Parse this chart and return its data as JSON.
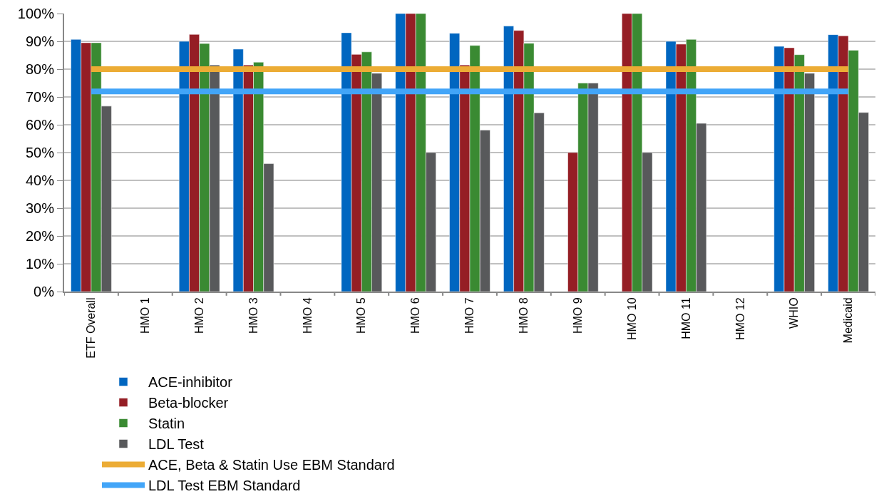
{
  "chart_data": {
    "type": "bar",
    "categories": [
      "ETF Overall",
      "HMO 1",
      "HMO 2",
      "HMO 3",
      "HMO 4",
      "HMO 5",
      "HMO 6",
      "HMO 7",
      "HMO 8",
      "HMO 9",
      "HMO 10",
      "HMO 11",
      "HMO 12",
      "WHIO",
      "Medicaid"
    ],
    "series": [
      {
        "name": "ACE-inhibitor",
        "color": "#0066c0",
        "values": [
          90.7,
          null,
          90,
          87.2,
          null,
          93.1,
          100,
          92.9,
          95.5,
          null,
          null,
          90,
          null,
          88.2,
          92.4
        ]
      },
      {
        "name": "Beta-blocker",
        "color": "#951e25",
        "values": [
          89.5,
          null,
          92.5,
          81.5,
          null,
          85.3,
          100,
          81.5,
          93.9,
          50,
          100,
          89,
          null,
          87.7,
          92
        ]
      },
      {
        "name": "Statin",
        "color": "#3a8a32",
        "values": [
          89.5,
          null,
          89.2,
          82.5,
          null,
          86.2,
          100,
          88.5,
          89.3,
          75,
          100,
          90.7,
          null,
          85.2,
          86.8
        ]
      },
      {
        "name": "LDL Test",
        "color": "#58595b",
        "values": [
          66.7,
          null,
          81.5,
          46,
          null,
          78.5,
          50,
          58.1,
          64.3,
          75,
          50,
          60.5,
          null,
          78.5,
          64.4
        ]
      },
      {
        "name": "ACE, Beta & Statin Use EBM Standard",
        "type": "line",
        "color": "#ecac35",
        "values": [
          80,
          80,
          80,
          80,
          80,
          80,
          80,
          80,
          80,
          80,
          80,
          80,
          80,
          80,
          80
        ]
      },
      {
        "name": "LDL Test EBM Standard",
        "type": "line",
        "color": "#42a5f8",
        "values": [
          72,
          72,
          72,
          72,
          72,
          72,
          72,
          72,
          72,
          72,
          72,
          72,
          72,
          72,
          72
        ]
      }
    ],
    "ylim": [
      0,
      100
    ],
    "yticks": [
      {
        "value": 0,
        "label": "0%"
      },
      {
        "value": 10,
        "label": "10%"
      },
      {
        "value": 20,
        "label": "20%"
      },
      {
        "value": 30,
        "label": "30%"
      },
      {
        "value": 40,
        "label": "40%"
      },
      {
        "value": 50,
        "label": "50%"
      },
      {
        "value": 60,
        "label": "60%"
      },
      {
        "value": 70,
        "label": "70%"
      },
      {
        "value": 80,
        "label": "80%"
      },
      {
        "value": 90,
        "label": "90%"
      },
      {
        "value": 100,
        "label": "100%"
      }
    ],
    "grid": "y",
    "legend": "bottom",
    "marker": "none",
    "line_style": "solid"
  }
}
